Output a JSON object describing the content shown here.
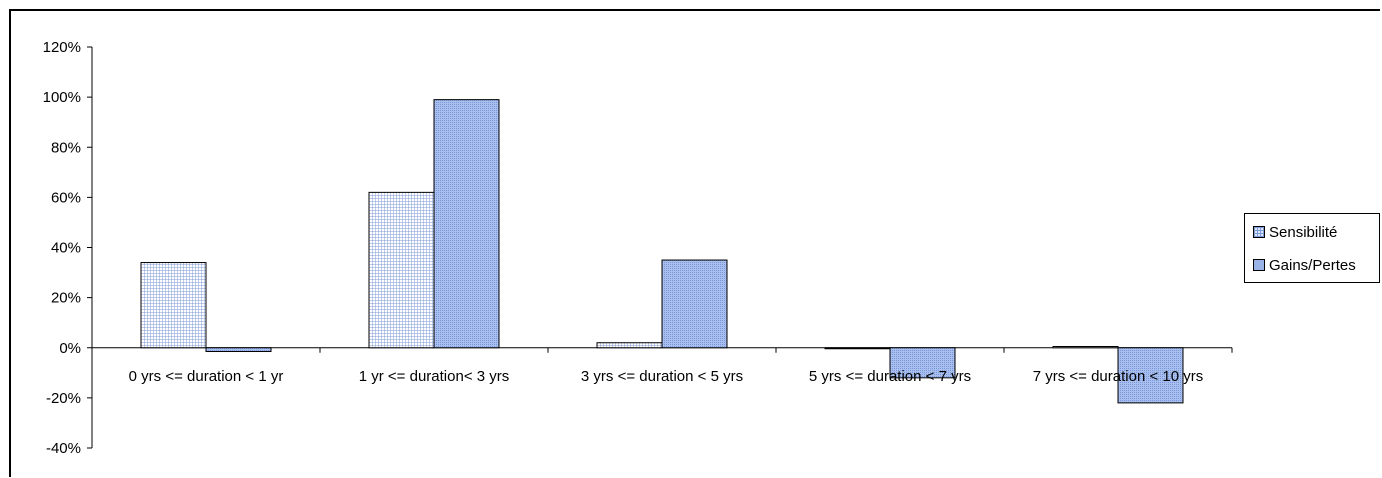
{
  "chart_data": {
    "type": "bar",
    "categories": [
      "0 yrs <= duration < 1 yr",
      "1 yr <= duration< 3 yrs",
      "3 yrs <= duration < 5 yrs",
      "5 yrs <= duration < 7 yrs",
      "7 yrs <= duration < 10 yrs"
    ],
    "series": [
      {
        "name": "Sensibilité",
        "values": [
          34,
          62,
          2,
          0,
          0.5
        ],
        "color": "#dbe6ff",
        "pattern": "grid"
      },
      {
        "name": "Gains/Pertes",
        "values": [
          -1.5,
          99,
          35,
          -12,
          -22
        ],
        "color": "#99b3e6",
        "pattern": "dots"
      }
    ],
    "y_ticks": [
      "120%",
      "100%",
      "80%",
      "60%",
      "40%",
      "20%",
      "0%",
      "-20%",
      "-40%"
    ],
    "ylim": [
      -40,
      120
    ],
    "title": "",
    "xlabel": "",
    "ylabel": "",
    "grid": false,
    "legend_position": "right"
  },
  "legend": {
    "items": [
      {
        "label": "Sensibilité"
      },
      {
        "label": "Gains/Pertes"
      }
    ]
  }
}
